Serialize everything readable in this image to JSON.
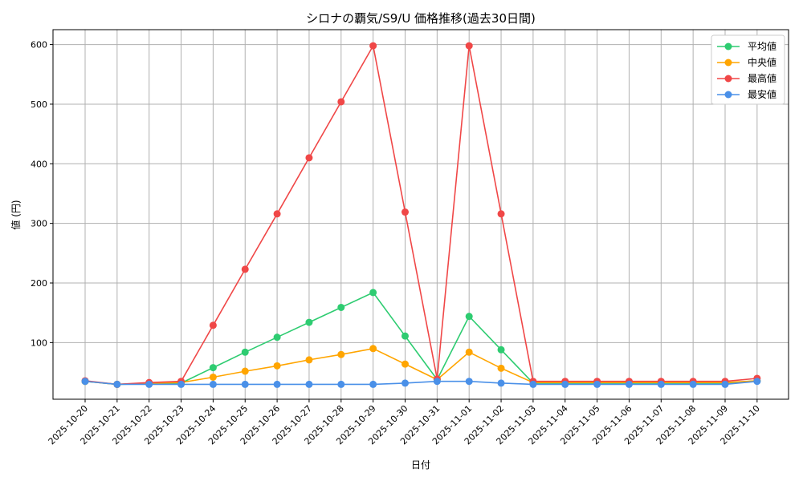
{
  "chart_data": {
    "type": "line",
    "title": "シロナの覇気/S9/U 価格推移(過去30日間)",
    "xlabel": "日付",
    "ylabel": "値 (円)",
    "categories": [
      "2025-10-20",
      "2025-10-21",
      "2025-10-22",
      "2025-10-23",
      "2025-10-24",
      "2025-10-25",
      "2025-10-26",
      "2025-10-27",
      "2025-10-28",
      "2025-10-29",
      "2025-10-30",
      "2025-10-31",
      "2025-11-01",
      "2025-11-02",
      "2025-11-03",
      "2025-11-04",
      "2025-11-05",
      "2025-11-06",
      "2025-11-07",
      "2025-11-08",
      "2025-11-09",
      "2025-11-10"
    ],
    "yticks": [
      100,
      200,
      300,
      400,
      500,
      600
    ],
    "ylim": [
      5,
      625
    ],
    "grid": true,
    "legend_position": "top-right",
    "series": [
      {
        "name": "平均値",
        "color": "#2ecc71",
        "values": [
          35,
          30,
          31,
          32,
          58,
          84,
          109,
          134,
          159,
          184,
          111,
          38,
          144,
          88,
          32,
          32,
          32,
          32,
          32,
          32,
          32,
          36
        ]
      },
      {
        "name": "中央値",
        "color": "#ffa500",
        "values": [
          35,
          30,
          32,
          33,
          42,
          52,
          61,
          71,
          80,
          90,
          64,
          38,
          84,
          57,
          33,
          33,
          33,
          33,
          33,
          33,
          33,
          36
        ]
      },
      {
        "name": "最高値",
        "color": "#f04747",
        "values": [
          36,
          30,
          33,
          35,
          129,
          223,
          316,
          410,
          504,
          598,
          319,
          39,
          598,
          316,
          35,
          35,
          35,
          35,
          35,
          35,
          35,
          40
        ]
      },
      {
        "name": "最安値",
        "color": "#4a90e8",
        "values": [
          35,
          30,
          30,
          30,
          30,
          30,
          30,
          30,
          30,
          30,
          32,
          35,
          35,
          32,
          30,
          30,
          30,
          30,
          30,
          30,
          30,
          35
        ]
      }
    ]
  }
}
